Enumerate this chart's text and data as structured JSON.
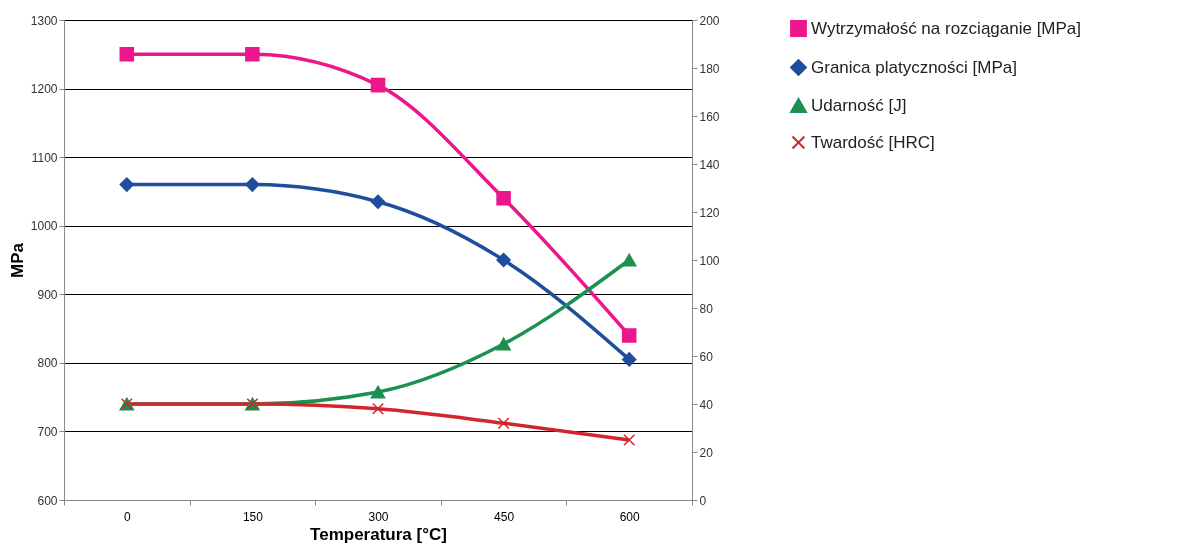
{
  "chart_data": {
    "type": "line",
    "xlabel": "Temperatura [°C]",
    "ylabel": "MPa",
    "categories": [
      "0",
      "150",
      "300",
      "450",
      "600"
    ],
    "series": [
      {
        "name": "Wytrzymałość na rozciąganie [MPa]",
        "color": "#ec178c",
        "marker": "square",
        "values": [
          1250,
          1250,
          1205,
          1040,
          840
        ]
      },
      {
        "name": "Granica platyczności [MPa]",
        "color": "#1f4e9e",
        "marker": "diamond",
        "values": [
          1060,
          1060,
          1035,
          950,
          805
        ]
      },
      {
        "name": "Udarność [J]",
        "color": "#1a9150",
        "marker": "triangle",
        "axis": "y2",
        "values": [
          40,
          40,
          45,
          65,
          100
        ]
      },
      {
        "name": "Twardość [HRC]",
        "color": "#d1262c",
        "marker": "cross",
        "axis": "y2",
        "values": [
          40,
          40,
          38,
          32,
          25
        ]
      }
    ],
    "ylim": [
      600,
      1300
    ],
    "yticks": [
      600,
      700,
      800,
      900,
      1000,
      1100,
      1200,
      1300
    ],
    "y2lim": [
      0,
      200
    ],
    "y2ticks": [
      0,
      20,
      40,
      60,
      80,
      100,
      120,
      140,
      160,
      180,
      200
    ],
    "grid": "y",
    "legend": "right",
    "line_style": "solid"
  }
}
